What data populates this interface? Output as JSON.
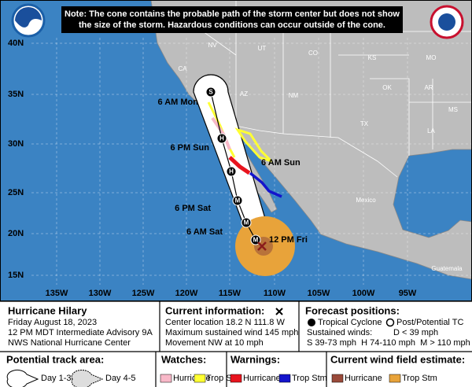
{
  "note": [
    "Note: The cone contains the probable path of the storm center but does not show",
    "the size of the storm. Hazardous conditions can occur outside of the cone."
  ],
  "map": {
    "lat_labels": [
      "40N",
      "35N",
      "30N",
      "25N",
      "20N",
      "15N"
    ],
    "lon_labels": [
      "135W",
      "130W",
      "125W",
      "120W",
      "115W",
      "110W",
      "105W",
      "100W",
      "95W"
    ],
    "region_labels": [
      "NV",
      "UT",
      "CO",
      "KS",
      "MO",
      "CA",
      "AZ",
      "NM",
      "OK",
      "AR",
      "TX",
      "LA",
      "MS",
      "Mexico",
      "Guatemala"
    ],
    "positions": [
      {
        "marker": "S",
        "label": "6 AM Mon"
      },
      {
        "marker": "H",
        "label": "6 PM Sun"
      },
      {
        "marker": "H",
        "label": "6 AM Sun"
      },
      {
        "marker": "M",
        "label": "6 PM Sat"
      },
      {
        "marker": "M",
        "label": "6 AM Sat"
      },
      {
        "marker": "M",
        "label": "12 PM Fri"
      }
    ]
  },
  "legend": {
    "storm": {
      "name": "Hurricane Hilary",
      "lines": [
        "Friday August 18, 2023",
        "12 PM MDT Intermediate Advisory 9A",
        "NWS National Hurricane Center"
      ]
    },
    "current": {
      "title": "Current information:",
      "lines": [
        "Center location 18.2 N 111.8 W",
        "Maximum sustained wind 145 mph",
        "Movement NW at 10 mph"
      ]
    },
    "forecast": {
      "title": "Forecast positions:",
      "tropical": "Tropical Cyclone",
      "post": "Post/Potential TC",
      "winds_title": "Sustained winds:",
      "d": "D < 39 mph",
      "scale": "S 39-73 mph  H 74-110 mph  M > 110 mph"
    },
    "track": {
      "title": "Potential track area:",
      "day13": "Day 1-3",
      "day45": "Day 4-5"
    },
    "watches": {
      "title": "Watches:",
      "hurricane": "Hurricane",
      "trop": "Trop Stm"
    },
    "warnings": {
      "title": "Warnings:",
      "hurricane": "Hurricane",
      "trop": "Trop Stm"
    },
    "wind_field": {
      "title": "Current wind field estimate:",
      "hurricane": "Hurricane",
      "trop": "Trop Stm"
    }
  }
}
